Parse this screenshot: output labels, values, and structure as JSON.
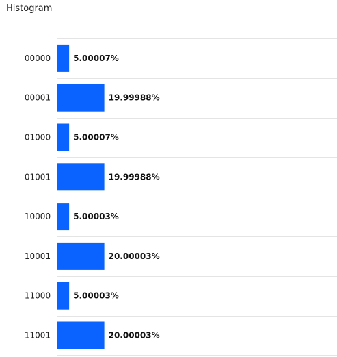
{
  "chart_data": {
    "type": "bar",
    "orientation": "horizontal",
    "title": "Histogram",
    "categories": [
      "00000",
      "00001",
      "01000",
      "01001",
      "10000",
      "10001",
      "11000",
      "11001"
    ],
    "values": [
      5.00007,
      19.99988,
      5.00007,
      19.99988,
      5.00003,
      20.00003,
      5.00003,
      20.00003
    ],
    "value_labels": [
      "5.00007%",
      "19.99988%",
      "5.00007%",
      "19.99988%",
      "5.00003%",
      "20.00003%",
      "5.00003%",
      "20.00003%"
    ],
    "grid": true,
    "xlim": [
      0,
      100
    ],
    "colors": {
      "bar": "#0a63ff",
      "grid": "#e4e4e4"
    }
  }
}
